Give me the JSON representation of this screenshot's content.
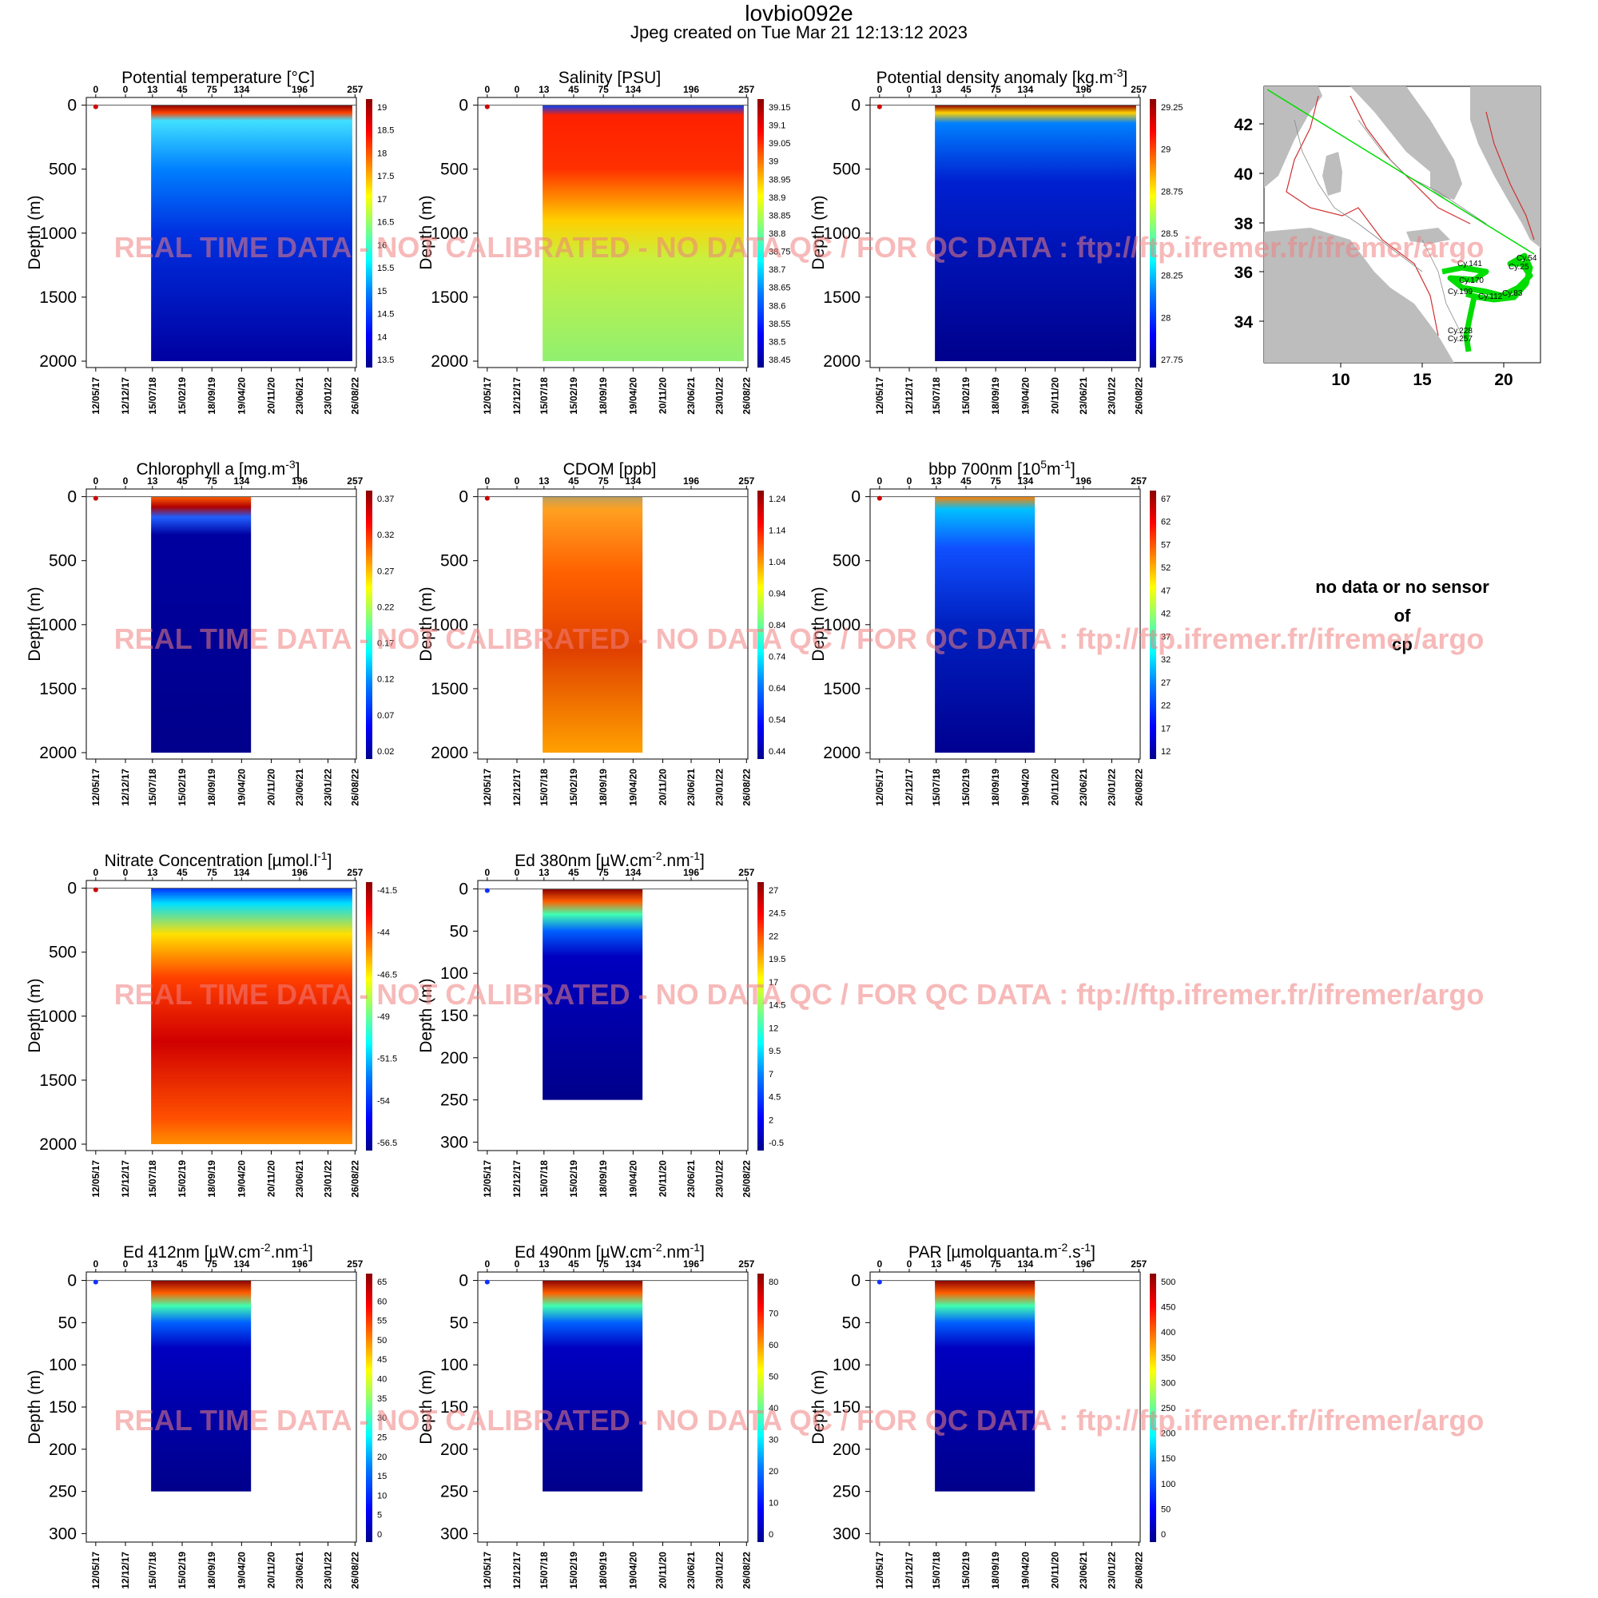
{
  "header": {
    "title": "lovbio092e",
    "subtitle": "Jpeg created on  Tue Mar 21 12:13:12 2023"
  },
  "watermark": "REAL TIME DATA - NOT CALIBRATED - NO DATA QC  /  FOR QC DATA : ftp://ftp.ifremer.fr/ifremer/argo",
  "nodata": {
    "line1": "no data or no sensor",
    "line2": "of",
    "line3": "cp"
  },
  "colors": {
    "scale": [
      "#00008b",
      "#0000ff",
      "#007fff",
      "#00ffff",
      "#7fff7f",
      "#ffff00",
      "#ff7f00",
      "#ff0000",
      "#8b0000"
    ],
    "map_land": "#bdbdbd",
    "track": "#00dd00",
    "contour_red": "#d03030",
    "contour_grey": "#888888"
  },
  "chart_data": [
    {
      "type": "heatmap",
      "title": "Potential temperature [°C]",
      "ylabel": "Depth (m)",
      "ylim": [
        2050,
        -60
      ],
      "y_ticks": [
        0,
        500,
        1000,
        1500,
        2000
      ],
      "cycle_ticks": [
        "0",
        "0",
        "13",
        "45",
        "75",
        "134",
        "196",
        "257"
      ],
      "date_ticks": [
        "12/05/17",
        "12/12/17",
        "15/07/18",
        "15/02/19",
        "18/09/19",
        "19/04/20",
        "20/11/20",
        "23/06/21",
        "23/01/22",
        "26/08/22"
      ],
      "colorbar": [
        "19",
        "18.5",
        "18",
        "17.5",
        "17",
        "16.5",
        "16",
        "15.5",
        "15",
        "14.5",
        "14",
        "13.5"
      ],
      "coverage": "full",
      "style": "temp"
    },
    {
      "type": "heatmap",
      "title": "Salinity [PSU]",
      "ylabel": "Depth (m)",
      "ylim": [
        2050,
        -60
      ],
      "y_ticks": [
        0,
        500,
        1000,
        1500,
        2000
      ],
      "cycle_ticks": [
        "0",
        "0",
        "13",
        "45",
        "75",
        "134",
        "196",
        "257"
      ],
      "date_ticks": [
        "12/05/17",
        "12/12/17",
        "15/07/18",
        "15/02/19",
        "18/09/19",
        "19/04/20",
        "20/11/20",
        "23/06/21",
        "23/01/22",
        "26/08/22"
      ],
      "colorbar": [
        "39.15",
        "39.1",
        "39.05",
        "39",
        "38.95",
        "38.9",
        "38.85",
        "38.8",
        "38.75",
        "38.7",
        "38.65",
        "38.6",
        "38.55",
        "38.5",
        "38.45"
      ],
      "coverage": "full",
      "style": "sal"
    },
    {
      "type": "heatmap",
      "title": "Potential density anomaly [kg.m",
      "title_sup": "-3",
      "title_end": "]",
      "ylabel": "Depth (m)",
      "ylim": [
        2050,
        -60
      ],
      "y_ticks": [
        0,
        500,
        1000,
        1500,
        2000
      ],
      "cycle_ticks": [
        "0",
        "0",
        "13",
        "45",
        "75",
        "134",
        "196",
        "257"
      ],
      "date_ticks": [
        "12/05/17",
        "12/12/17",
        "15/07/18",
        "15/02/19",
        "18/09/19",
        "19/04/20",
        "20/11/20",
        "23/06/21",
        "23/01/22",
        "26/08/22"
      ],
      "colorbar": [
        "29.25",
        "29",
        "28.75",
        "28.5",
        "28.25",
        "28",
        "27.75"
      ],
      "coverage": "full",
      "style": "dens"
    },
    {
      "type": "heatmap",
      "title": "Chlorophyll a [mg.m",
      "title_sup": "-3",
      "title_end": "]",
      "ylabel": "Depth (m)",
      "ylim": [
        2050,
        -60
      ],
      "y_ticks": [
        0,
        500,
        1000,
        1500,
        2000
      ],
      "cycle_ticks": [
        "0",
        "0",
        "13",
        "45",
        "75",
        "134",
        "196",
        "257"
      ],
      "date_ticks": [
        "12/05/17",
        "12/12/17",
        "15/07/18",
        "15/02/19",
        "18/09/19",
        "19/04/20",
        "20/11/20",
        "23/06/21",
        "23/01/22",
        "26/08/22"
      ],
      "colorbar": [
        "0.37",
        "0.32",
        "0.27",
        "0.22",
        "0.17",
        "0.12",
        "0.07",
        "0.02"
      ],
      "coverage": "partial",
      "style": "chl"
    },
    {
      "type": "heatmap",
      "title": "CDOM  [ppb]",
      "ylabel": "Depth (m)",
      "ylim": [
        2050,
        -60
      ],
      "y_ticks": [
        0,
        500,
        1000,
        1500,
        2000
      ],
      "cycle_ticks": [
        "0",
        "0",
        "13",
        "45",
        "75",
        "134",
        "196",
        "257"
      ],
      "date_ticks": [
        "12/05/17",
        "12/12/17",
        "15/07/18",
        "15/02/19",
        "18/09/19",
        "19/04/20",
        "20/11/20",
        "23/06/21",
        "23/01/22",
        "26/08/22"
      ],
      "colorbar": [
        "1.24",
        "1.14",
        "1.04",
        "0.94",
        "0.84",
        "0.74",
        "0.64",
        "0.54",
        "0.44"
      ],
      "coverage": "partial",
      "style": "cdom"
    },
    {
      "type": "heatmap",
      "title": "bbp 700nm [10",
      "title_sup": "5",
      "title_end": "m",
      "title_sup2": "-1",
      "title_end2": "]",
      "ylabel": "Depth (m)",
      "ylim": [
        2050,
        -60
      ],
      "y_ticks": [
        0,
        500,
        1000,
        1500,
        2000
      ],
      "cycle_ticks": [
        "0",
        "0",
        "13",
        "45",
        "75",
        "134",
        "196",
        "257"
      ],
      "date_ticks": [
        "12/05/17",
        "12/12/17",
        "15/07/18",
        "15/02/19",
        "18/09/19",
        "19/04/20",
        "20/11/20",
        "23/06/21",
        "23/01/22",
        "26/08/22"
      ],
      "colorbar": [
        "67",
        "62",
        "57",
        "52",
        "47",
        "42",
        "37",
        "32",
        "27",
        "22",
        "17",
        "12"
      ],
      "coverage": "partial",
      "style": "bbp"
    },
    {
      "type": "heatmap",
      "title": "Nitrate Concentration [µmol.l",
      "title_sup": "-1",
      "title_end": "]",
      "ylabel": "Depth (m)",
      "ylim": [
        2050,
        -60
      ],
      "y_ticks": [
        0,
        500,
        1000,
        1500,
        2000
      ],
      "cycle_ticks": [
        "0",
        "0",
        "13",
        "45",
        "75",
        "134",
        "196",
        "257"
      ],
      "date_ticks": [
        "12/05/17",
        "12/12/17",
        "15/07/18",
        "15/02/19",
        "18/09/19",
        "19/04/20",
        "20/11/20",
        "23/06/21",
        "23/01/22",
        "26/08/22"
      ],
      "colorbar": [
        "-41.5",
        "-44",
        "-46.5",
        "-49",
        "-51.5",
        "-54",
        "-56.5"
      ],
      "coverage": "full",
      "style": "nit"
    },
    {
      "type": "heatmap",
      "title": "Ed 380nm [µW.cm",
      "title_sup": "-2",
      "title_end": ".nm",
      "title_sup2": "-1",
      "title_end2": "]",
      "ylabel": "Depth (m)",
      "ylim": [
        310,
        -10
      ],
      "y_ticks": [
        0,
        50,
        100,
        150,
        200,
        250,
        300
      ],
      "cycle_ticks": [
        "0",
        "0",
        "13",
        "45",
        "75",
        "134",
        "196",
        "257"
      ],
      "date_ticks": [
        "12/05/17",
        "12/12/17",
        "15/07/18",
        "15/02/19",
        "18/09/19",
        "19/04/20",
        "20/11/20",
        "23/06/21",
        "23/01/22",
        "26/08/22"
      ],
      "colorbar": [
        "27",
        "24.5",
        "22",
        "19.5",
        "17",
        "14.5",
        "12",
        "9.5",
        "7",
        "4.5",
        "2",
        "-0.5"
      ],
      "coverage": "partial",
      "style": "light"
    },
    {
      "type": "heatmap",
      "title": "Ed 412nm [µW.cm",
      "title_sup": "-2",
      "title_end": ".nm",
      "title_sup2": "-1",
      "title_end2": "]",
      "ylabel": "Depth (m)",
      "ylim": [
        310,
        -10
      ],
      "y_ticks": [
        0,
        50,
        100,
        150,
        200,
        250,
        300
      ],
      "cycle_ticks": [
        "0",
        "0",
        "13",
        "45",
        "75",
        "134",
        "196",
        "257"
      ],
      "date_ticks": [
        "12/05/17",
        "12/12/17",
        "15/07/18",
        "15/02/19",
        "18/09/19",
        "19/04/20",
        "20/11/20",
        "23/06/21",
        "23/01/22",
        "26/08/22"
      ],
      "colorbar": [
        "65",
        "60",
        "55",
        "50",
        "45",
        "40",
        "35",
        "30",
        "25",
        "20",
        "15",
        "10",
        "5",
        "0"
      ],
      "coverage": "partial",
      "style": "light"
    },
    {
      "type": "heatmap",
      "title": "Ed 490nm [µW.cm",
      "title_sup": "-2",
      "title_end": ".nm",
      "title_sup2": "-1",
      "title_end2": "]",
      "ylabel": "Depth (m)",
      "ylim": [
        310,
        -10
      ],
      "y_ticks": [
        0,
        50,
        100,
        150,
        200,
        250,
        300
      ],
      "cycle_ticks": [
        "0",
        "0",
        "13",
        "45",
        "75",
        "134",
        "196",
        "257"
      ],
      "date_ticks": [
        "12/05/17",
        "12/12/17",
        "15/07/18",
        "15/02/19",
        "18/09/19",
        "19/04/20",
        "20/11/20",
        "23/06/21",
        "23/01/22",
        "26/08/22"
      ],
      "colorbar": [
        "80",
        "70",
        "60",
        "50",
        "40",
        "30",
        "20",
        "10",
        "0"
      ],
      "coverage": "partial",
      "style": "light"
    },
    {
      "type": "heatmap",
      "title": "PAR [µmolquanta.m",
      "title_sup": "-2",
      "title_end": ".s",
      "title_sup2": "-1",
      "title_end2": "]",
      "ylabel": "Depth (m)",
      "ylim": [
        310,
        -10
      ],
      "y_ticks": [
        0,
        50,
        100,
        150,
        200,
        250,
        300
      ],
      "cycle_ticks": [
        "0",
        "0",
        "13",
        "45",
        "75",
        "134",
        "196",
        "257"
      ],
      "date_ticks": [
        "12/05/17",
        "12/12/17",
        "15/07/18",
        "15/02/19",
        "18/09/19",
        "19/04/20",
        "20/11/20",
        "23/06/21",
        "23/01/22",
        "26/08/22"
      ],
      "colorbar": [
        "500",
        "450",
        "400",
        "350",
        "300",
        "250",
        "200",
        "150",
        "100",
        "50",
        "0"
      ],
      "coverage": "partial",
      "style": "light"
    }
  ],
  "map": {
    "y_ticks": [
      "42",
      "40",
      "38",
      "36",
      "34"
    ],
    "x_ticks": [
      "10",
      "15",
      "20"
    ],
    "cycle_labels": [
      "Cy.141",
      "Cy.54",
      "Cy.170",
      "Cy.25",
      "Cy.199",
      "Cy.112",
      "Cy.83",
      "Cy.228",
      "Cy.257"
    ]
  }
}
